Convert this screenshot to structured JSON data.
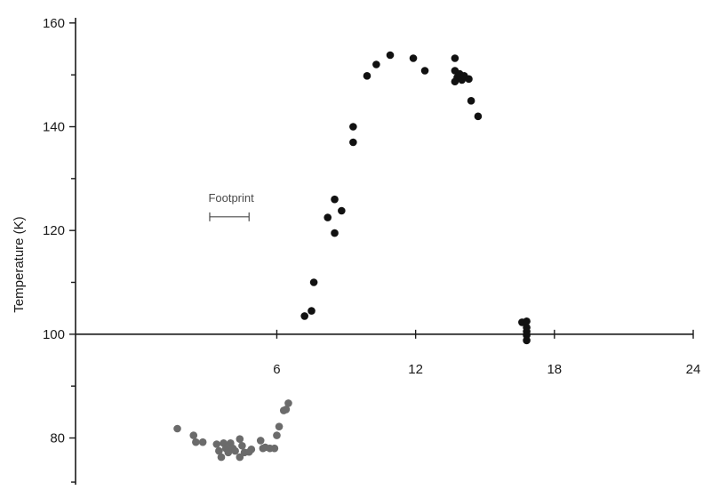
{
  "chart_data": {
    "type": "scatter",
    "title": "",
    "xlabel": "",
    "ylabel": "Temperature (K)",
    "xlim": [
      -2.7,
      24
    ],
    "ylim": [
      71,
      161
    ],
    "y_ticks": [
      80,
      100,
      120,
      140,
      160
    ],
    "y_tick_labels": [
      "80",
      "100",
      "120",
      "140",
      "160"
    ],
    "x_ticks": [
      6,
      12,
      18,
      24
    ],
    "x_tick_labels": [
      "6",
      "12",
      "18",
      "24"
    ],
    "x_axis_at_y": 100,
    "grid": false,
    "annotation": {
      "text": "Footprint",
      "x_start": 3.1,
      "x_end": 4.8,
      "y": 124
    },
    "series": [
      {
        "color": "#6b6b6b",
        "points": [
          [
            1.7,
            81.8
          ],
          [
            2.4,
            80.5
          ],
          [
            2.5,
            79.2
          ],
          [
            2.8,
            79.2
          ],
          [
            3.4,
            78.8
          ],
          [
            3.5,
            77.5
          ],
          [
            3.6,
            76.3
          ],
          [
            3.7,
            79.0
          ],
          [
            3.8,
            78.0
          ],
          [
            3.9,
            77.2
          ],
          [
            4.0,
            79.0
          ],
          [
            4.1,
            78.0
          ],
          [
            4.2,
            77.5
          ],
          [
            4.4,
            79.8
          ],
          [
            4.4,
            76.3
          ],
          [
            4.5,
            78.5
          ],
          [
            4.6,
            77.2
          ],
          [
            4.8,
            77.3
          ],
          [
            4.9,
            77.8
          ],
          [
            5.3,
            79.5
          ],
          [
            5.4,
            78.0
          ],
          [
            5.5,
            78.2
          ],
          [
            5.7,
            78.0
          ],
          [
            5.9,
            78.0
          ],
          [
            6.0,
            80.5
          ],
          [
            6.1,
            82.2
          ],
          [
            6.3,
            85.3
          ],
          [
            6.4,
            85.5
          ],
          [
            6.5,
            86.7
          ]
        ]
      },
      {
        "color": "#111111",
        "points": [
          [
            7.2,
            103.5
          ],
          [
            7.5,
            104.5
          ],
          [
            7.6,
            110.0
          ],
          [
            8.2,
            122.5
          ],
          [
            8.5,
            126.0
          ],
          [
            8.5,
            119.5
          ],
          [
            8.8,
            123.8
          ],
          [
            9.3,
            140.0
          ],
          [
            9.3,
            137.0
          ],
          [
            9.9,
            149.8
          ],
          [
            10.3,
            152.0
          ],
          [
            10.9,
            153.8
          ],
          [
            11.9,
            153.2
          ],
          [
            12.4,
            150.8
          ],
          [
            13.7,
            153.2
          ],
          [
            13.7,
            150.8
          ],
          [
            13.8,
            149.5
          ],
          [
            13.7,
            148.7
          ],
          [
            13.9,
            150.2
          ],
          [
            14.0,
            149.0
          ],
          [
            14.1,
            149.8
          ],
          [
            14.3,
            149.2
          ],
          [
            14.4,
            145.0
          ],
          [
            14.7,
            142.0
          ],
          [
            16.6,
            102.3
          ],
          [
            16.8,
            102.5
          ],
          [
            16.8,
            101.3
          ],
          [
            16.8,
            100.5
          ],
          [
            16.8,
            99.8
          ],
          [
            16.8,
            98.8
          ]
        ]
      }
    ]
  }
}
